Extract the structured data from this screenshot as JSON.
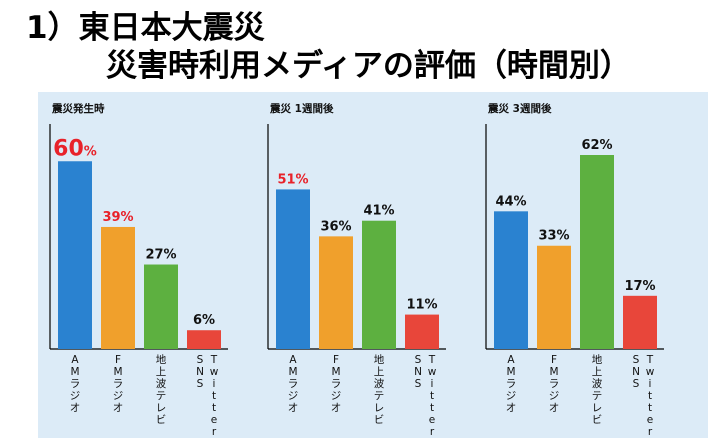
{
  "title": {
    "line1": "1）東日本大震災",
    "line2": "災害時利用メディアの評価（時間別）"
  },
  "colors": {
    "am": "#2a82d0",
    "fm": "#f0a02c",
    "tv": "#5db040",
    "sns": "#e8463a",
    "highlight": "#e8222a",
    "label": "#111111",
    "background": "#dcebf7"
  },
  "chart_data": [
    {
      "type": "bar",
      "title": "震災発生時",
      "categories": [
        "AMラジオ",
        "FMラジオ",
        "地上波テレビ",
        "SNS Twitter"
      ],
      "values": [
        60,
        39,
        27,
        6
      ],
      "value_labels": [
        "60",
        "39%",
        "27%",
        "6%"
      ],
      "highlight": [
        true,
        true,
        false,
        false
      ],
      "ylim": [
        0,
        62
      ]
    },
    {
      "type": "bar",
      "title": "震災 1週間後",
      "categories": [
        "AMラジオ",
        "FMラジオ",
        "地上波テレビ",
        "SNS Twitter"
      ],
      "values": [
        51,
        36,
        41,
        11
      ],
      "value_labels": [
        "51%",
        "36%",
        "41%",
        "11%"
      ],
      "highlight": [
        true,
        false,
        false,
        false
      ],
      "ylim": [
        0,
        62
      ]
    },
    {
      "type": "bar",
      "title": "震災 3週間後",
      "categories": [
        "AMラジオ",
        "FMラジオ",
        "地上波テレビ",
        "SNS Twitter"
      ],
      "values": [
        44,
        33,
        62,
        17
      ],
      "value_labels": [
        "44%",
        "33%",
        "62%",
        "17%"
      ],
      "highlight": [
        false,
        false,
        false,
        false
      ],
      "ylim": [
        0,
        62
      ]
    }
  ],
  "first_value_suffix": "%"
}
